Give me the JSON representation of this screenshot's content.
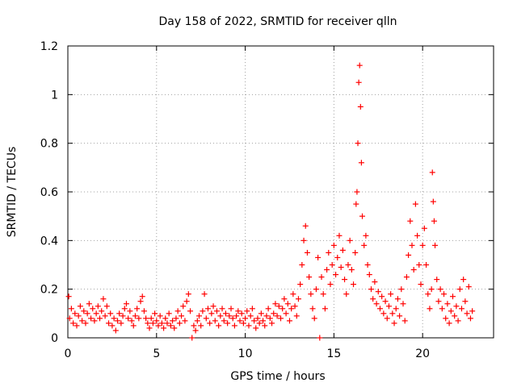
{
  "chart_data": {
    "type": "scatter",
    "title": "Day 158 of 2022, SRMTID for receiver qlln",
    "xlabel": "GPS time / hours",
    "ylabel": "SRMTID / TECUs",
    "xlim": [
      0,
      24
    ],
    "ylim": [
      0,
      1.2
    ],
    "grid": true,
    "marker": "+",
    "marker_color": "#ff0000",
    "x_ticks": [
      0,
      5,
      10,
      15,
      20
    ],
    "x_tick_labels": [
      "0",
      "5",
      "10",
      "15",
      "20"
    ],
    "y_ticks": [
      0,
      0.2,
      0.4,
      0.6,
      0.8,
      1.0,
      1.2
    ],
    "y_tick_labels": [
      "0",
      "0.2",
      "0.4",
      "0.6",
      "0.8",
      "1",
      "1.2"
    ],
    "series": [
      {
        "name": "SRMTID",
        "points": [
          [
            0.05,
            0.17
          ],
          [
            0.1,
            0.08
          ],
          [
            0.2,
            0.12
          ],
          [
            0.3,
            0.06
          ],
          [
            0.4,
            0.1
          ],
          [
            0.5,
            0.05
          ],
          [
            0.6,
            0.09
          ],
          [
            0.7,
            0.13
          ],
          [
            0.8,
            0.07
          ],
          [
            0.9,
            0.11
          ],
          [
            1.0,
            0.06
          ],
          [
            1.1,
            0.1
          ],
          [
            1.2,
            0.14
          ],
          [
            1.3,
            0.08
          ],
          [
            1.4,
            0.12
          ],
          [
            1.5,
            0.07
          ],
          [
            1.6,
            0.1
          ],
          [
            1.7,
            0.13
          ],
          [
            1.8,
            0.08
          ],
          [
            1.9,
            0.11
          ],
          [
            2.0,
            0.16
          ],
          [
            2.1,
            0.09
          ],
          [
            2.2,
            0.13
          ],
          [
            2.3,
            0.06
          ],
          [
            2.4,
            0.1
          ],
          [
            2.5,
            0.05
          ],
          [
            2.6,
            0.08
          ],
          [
            2.7,
            0.03
          ],
          [
            2.8,
            0.07
          ],
          [
            2.9,
            0.1
          ],
          [
            3.0,
            0.06
          ],
          [
            3.1,
            0.09
          ],
          [
            3.2,
            0.12
          ],
          [
            3.3,
            0.14
          ],
          [
            3.4,
            0.08
          ],
          [
            3.5,
            0.11
          ],
          [
            3.6,
            0.07
          ],
          [
            3.7,
            0.05
          ],
          [
            3.8,
            0.09
          ],
          [
            3.9,
            0.12
          ],
          [
            4.0,
            0.08
          ],
          [
            4.1,
            0.15
          ],
          [
            4.2,
            0.17
          ],
          [
            4.3,
            0.11
          ],
          [
            4.4,
            0.08
          ],
          [
            4.5,
            0.06
          ],
          [
            4.6,
            0.04
          ],
          [
            4.7,
            0.08
          ],
          [
            4.8,
            0.06
          ],
          [
            4.9,
            0.1
          ],
          [
            5.0,
            0.07
          ],
          [
            5.1,
            0.05
          ],
          [
            5.2,
            0.09
          ],
          [
            5.3,
            0.06
          ],
          [
            5.4,
            0.04
          ],
          [
            5.5,
            0.08
          ],
          [
            5.6,
            0.06
          ],
          [
            5.7,
            0.1
          ],
          [
            5.8,
            0.05
          ],
          [
            5.9,
            0.07
          ],
          [
            6.0,
            0.04
          ],
          [
            6.1,
            0.08
          ],
          [
            6.2,
            0.11
          ],
          [
            6.3,
            0.06
          ],
          [
            6.4,
            0.09
          ],
          [
            6.5,
            0.13
          ],
          [
            6.6,
            0.07
          ],
          [
            6.7,
            0.15
          ],
          [
            6.8,
            0.18
          ],
          [
            6.9,
            0.11
          ],
          [
            7.0,
            0.0
          ],
          [
            7.1,
            0.05
          ],
          [
            7.2,
            0.03
          ],
          [
            7.3,
            0.07
          ],
          [
            7.4,
            0.09
          ],
          [
            7.5,
            0.05
          ],
          [
            7.6,
            0.11
          ],
          [
            7.7,
            0.18
          ],
          [
            7.8,
            0.08
          ],
          [
            7.9,
            0.12
          ],
          [
            8.0,
            0.06
          ],
          [
            8.1,
            0.1
          ],
          [
            8.2,
            0.13
          ],
          [
            8.3,
            0.07
          ],
          [
            8.4,
            0.11
          ],
          [
            8.5,
            0.05
          ],
          [
            8.6,
            0.09
          ],
          [
            8.7,
            0.12
          ],
          [
            8.8,
            0.07
          ],
          [
            8.9,
            0.1
          ],
          [
            9.0,
            0.06
          ],
          [
            9.1,
            0.09
          ],
          [
            9.2,
            0.12
          ],
          [
            9.3,
            0.08
          ],
          [
            9.4,
            0.05
          ],
          [
            9.5,
            0.09
          ],
          [
            9.6,
            0.11
          ],
          [
            9.7,
            0.07
          ],
          [
            9.8,
            0.1
          ],
          [
            9.9,
            0.06
          ],
          [
            10.0,
            0.08
          ],
          [
            10.1,
            0.11
          ],
          [
            10.2,
            0.05
          ],
          [
            10.3,
            0.09
          ],
          [
            10.4,
            0.12
          ],
          [
            10.5,
            0.07
          ],
          [
            10.6,
            0.04
          ],
          [
            10.7,
            0.08
          ],
          [
            10.8,
            0.06
          ],
          [
            10.9,
            0.1
          ],
          [
            11.0,
            0.07
          ],
          [
            11.1,
            0.05
          ],
          [
            11.2,
            0.09
          ],
          [
            11.3,
            0.12
          ],
          [
            11.4,
            0.08
          ],
          [
            11.5,
            0.06
          ],
          [
            11.6,
            0.1
          ],
          [
            11.7,
            0.14
          ],
          [
            11.8,
            0.09
          ],
          [
            11.9,
            0.13
          ],
          [
            12.0,
            0.08
          ],
          [
            12.1,
            0.12
          ],
          [
            12.2,
            0.16
          ],
          [
            12.3,
            0.1
          ],
          [
            12.4,
            0.14
          ],
          [
            12.5,
            0.07
          ],
          [
            12.6,
            0.12
          ],
          [
            12.7,
            0.18
          ],
          [
            12.8,
            0.13
          ],
          [
            12.9,
            0.09
          ],
          [
            13.0,
            0.16
          ],
          [
            13.1,
            0.22
          ],
          [
            13.2,
            0.3
          ],
          [
            13.3,
            0.4
          ],
          [
            13.4,
            0.46
          ],
          [
            13.5,
            0.35
          ],
          [
            13.6,
            0.25
          ],
          [
            13.7,
            0.18
          ],
          [
            13.8,
            0.12
          ],
          [
            13.9,
            0.08
          ],
          [
            14.0,
            0.2
          ],
          [
            14.1,
            0.33
          ],
          [
            14.2,
            0.0
          ],
          [
            14.3,
            0.25
          ],
          [
            14.4,
            0.18
          ],
          [
            14.5,
            0.12
          ],
          [
            14.6,
            0.28
          ],
          [
            14.7,
            0.35
          ],
          [
            14.8,
            0.22
          ],
          [
            14.9,
            0.3
          ],
          [
            15.0,
            0.38
          ],
          [
            15.1,
            0.26
          ],
          [
            15.2,
            0.33
          ],
          [
            15.3,
            0.42
          ],
          [
            15.4,
            0.29
          ],
          [
            15.5,
            0.36
          ],
          [
            15.6,
            0.24
          ],
          [
            15.7,
            0.18
          ],
          [
            15.8,
            0.3
          ],
          [
            15.9,
            0.4
          ],
          [
            16.0,
            0.28
          ],
          [
            16.1,
            0.22
          ],
          [
            16.2,
            0.35
          ],
          [
            16.25,
            0.55
          ],
          [
            16.3,
            0.6
          ],
          [
            16.35,
            0.8
          ],
          [
            16.4,
            1.05
          ],
          [
            16.45,
            1.12
          ],
          [
            16.5,
            0.95
          ],
          [
            16.55,
            0.72
          ],
          [
            16.6,
            0.5
          ],
          [
            16.7,
            0.38
          ],
          [
            16.8,
            0.42
          ],
          [
            16.9,
            0.3
          ],
          [
            17.0,
            0.26
          ],
          [
            17.1,
            0.2
          ],
          [
            17.2,
            0.16
          ],
          [
            17.3,
            0.23
          ],
          [
            17.4,
            0.14
          ],
          [
            17.5,
            0.19
          ],
          [
            17.6,
            0.12
          ],
          [
            17.7,
            0.17
          ],
          [
            17.8,
            0.1
          ],
          [
            17.9,
            0.15
          ],
          [
            18.0,
            0.08
          ],
          [
            18.1,
            0.13
          ],
          [
            18.2,
            0.18
          ],
          [
            18.3,
            0.1
          ],
          [
            18.4,
            0.06
          ],
          [
            18.5,
            0.12
          ],
          [
            18.6,
            0.16
          ],
          [
            18.7,
            0.09
          ],
          [
            18.8,
            0.2
          ],
          [
            18.9,
            0.14
          ],
          [
            19.0,
            0.07
          ],
          [
            19.1,
            0.25
          ],
          [
            19.2,
            0.34
          ],
          [
            19.3,
            0.48
          ],
          [
            19.4,
            0.38
          ],
          [
            19.5,
            0.28
          ],
          [
            19.6,
            0.55
          ],
          [
            19.7,
            0.42
          ],
          [
            19.8,
            0.3
          ],
          [
            19.9,
            0.22
          ],
          [
            20.0,
            0.38
          ],
          [
            20.1,
            0.45
          ],
          [
            20.2,
            0.3
          ],
          [
            20.3,
            0.18
          ],
          [
            20.4,
            0.12
          ],
          [
            20.5,
            0.2
          ],
          [
            20.55,
            0.68
          ],
          [
            20.6,
            0.56
          ],
          [
            20.65,
            0.48
          ],
          [
            20.7,
            0.38
          ],
          [
            20.8,
            0.24
          ],
          [
            20.9,
            0.15
          ],
          [
            21.0,
            0.2
          ],
          [
            21.1,
            0.12
          ],
          [
            21.2,
            0.18
          ],
          [
            21.3,
            0.08
          ],
          [
            21.4,
            0.14
          ],
          [
            21.5,
            0.06
          ],
          [
            21.6,
            0.11
          ],
          [
            21.7,
            0.17
          ],
          [
            21.8,
            0.09
          ],
          [
            21.9,
            0.13
          ],
          [
            22.0,
            0.07
          ],
          [
            22.1,
            0.2
          ],
          [
            22.2,
            0.12
          ],
          [
            22.3,
            0.24
          ],
          [
            22.4,
            0.15
          ],
          [
            22.5,
            0.1
          ],
          [
            22.6,
            0.21
          ],
          [
            22.7,
            0.08
          ],
          [
            22.8,
            0.11
          ]
        ]
      }
    ]
  }
}
